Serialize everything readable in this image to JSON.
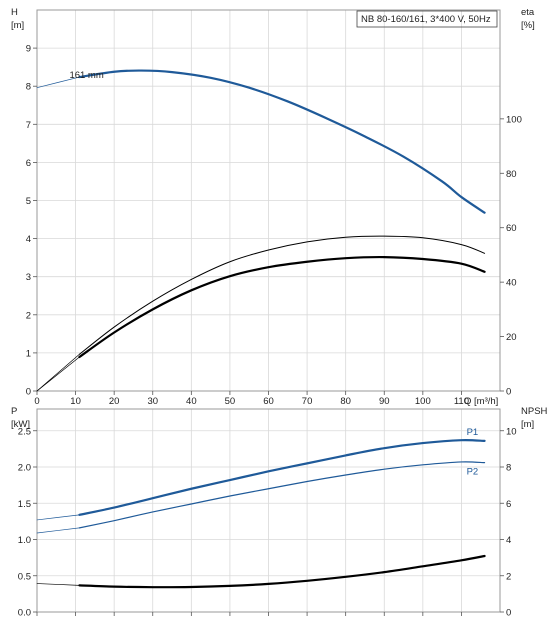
{
  "chart_data": [
    {
      "type": "line",
      "title": "NB 80-160/161, 3*400 V, 50Hz",
      "xlabel": "Q [m³/h]",
      "ylabel": "H",
      "ylabel_unit": "[m]",
      "y2label": "eta",
      "y2label_unit": "[%]",
      "xlim": [
        0,
        120
      ],
      "ylim": [
        0,
        10
      ],
      "y2lim": [
        0,
        140
      ],
      "x_ticks": [
        0,
        10,
        20,
        30,
        40,
        50,
        60,
        70,
        80,
        90,
        100,
        110
      ],
      "y_ticks": [
        0,
        1,
        2,
        3,
        4,
        5,
        6,
        7,
        8,
        9
      ],
      "y2_ticks": [
        0,
        20,
        40,
        60,
        80,
        100
      ],
      "grid": true,
      "annotation": "161 mm",
      "series": [
        {
          "axis": "left",
          "color": "#1f5a99",
          "width": 2.2,
          "points": [
            [
              0,
              7.96
            ],
            [
              11,
              8.24
            ],
            [
              20,
              8.38
            ],
            [
              27,
              8.41
            ],
            [
              35,
              8.37
            ],
            [
              45,
              8.22
            ],
            [
              55,
              7.96
            ],
            [
              65,
              7.6
            ],
            [
              75,
              7.16
            ],
            [
              85,
              6.68
            ],
            [
              95,
              6.15
            ],
            [
              105,
              5.5
            ],
            [
              110,
              5.09
            ],
            [
              116,
              4.68
            ]
          ]
        },
        {
          "axis": "right",
          "color": "#000000",
          "width": 1.0,
          "points": [
            [
              0,
              0
            ],
            [
              11,
              13.5
            ],
            [
              20,
              23.5
            ],
            [
              30,
              33
            ],
            [
              40,
              41
            ],
            [
              50,
              47.5
            ],
            [
              60,
              51.8
            ],
            [
              70,
              54.8
            ],
            [
              80,
              56.5
            ],
            [
              90,
              56.9
            ],
            [
              100,
              56.3
            ],
            [
              110,
              53.8
            ],
            [
              116,
              50.6
            ]
          ]
        },
        {
          "axis": "right",
          "color": "#000000",
          "width": 2.2,
          "points": [
            [
              0,
              0
            ],
            [
              11,
              12.5
            ],
            [
              20,
              21.5
            ],
            [
              30,
              30
            ],
            [
              40,
              37
            ],
            [
              50,
              42.2
            ],
            [
              60,
              45.5
            ],
            [
              70,
              47.5
            ],
            [
              80,
              48.8
            ],
            [
              90,
              49.2
            ],
            [
              100,
              48.5
            ],
            [
              110,
              46.8
            ],
            [
              116,
              43.8
            ]
          ]
        }
      ]
    },
    {
      "type": "line",
      "xlim": [
        0,
        120
      ],
      "ylabel": "P",
      "ylabel_unit": "[kW]",
      "y2label": "NPSH",
      "y2label_unit": "[m]",
      "ylim": [
        0,
        2.8
      ],
      "y2lim": [
        0,
        11.2
      ],
      "y_ticks": [
        0.0,
        0.5,
        1.0,
        1.5,
        2.0,
        2.5
      ],
      "y_tick_labels": [
        "0.0",
        "0.5",
        "1.0",
        "1.5",
        "2.0",
        "2.5"
      ],
      "y2_ticks": [
        0,
        2,
        4,
        6,
        8,
        10
      ],
      "grid": true,
      "series": [
        {
          "name": "P1",
          "axis": "left",
          "color": "#1f5a99",
          "width": 2.2,
          "points": [
            [
              0,
              1.27
            ],
            [
              11,
              1.34
            ],
            [
              20,
              1.44
            ],
            [
              30,
              1.57
            ],
            [
              40,
              1.7
            ],
            [
              50,
              1.82
            ],
            [
              60,
              1.94
            ],
            [
              70,
              2.05
            ],
            [
              80,
              2.16
            ],
            [
              90,
              2.26
            ],
            [
              100,
              2.33
            ],
            [
              110,
              2.37
            ],
            [
              116,
              2.36
            ]
          ]
        },
        {
          "name": "P2",
          "axis": "left",
          "color": "#1f5a99",
          "width": 1.2,
          "points": [
            [
              0,
              1.09
            ],
            [
              11,
              1.16
            ],
            [
              20,
              1.26
            ],
            [
              30,
              1.38
            ],
            [
              40,
              1.49
            ],
            [
              50,
              1.6
            ],
            [
              60,
              1.7
            ],
            [
              70,
              1.8
            ],
            [
              80,
              1.89
            ],
            [
              90,
              1.97
            ],
            [
              100,
              2.03
            ],
            [
              110,
              2.07
            ],
            [
              116,
              2.06
            ]
          ]
        },
        {
          "axis": "right",
          "color": "#000000",
          "width": 2.2,
          "points": [
            [
              0,
              1.57
            ],
            [
              11,
              1.47
            ],
            [
              20,
              1.4
            ],
            [
              30,
              1.37
            ],
            [
              40,
              1.38
            ],
            [
              50,
              1.44
            ],
            [
              60,
              1.55
            ],
            [
              70,
              1.72
            ],
            [
              80,
              1.94
            ],
            [
              90,
              2.2
            ],
            [
              100,
              2.52
            ],
            [
              110,
              2.85
            ],
            [
              116,
              3.09
            ]
          ]
        }
      ]
    }
  ]
}
